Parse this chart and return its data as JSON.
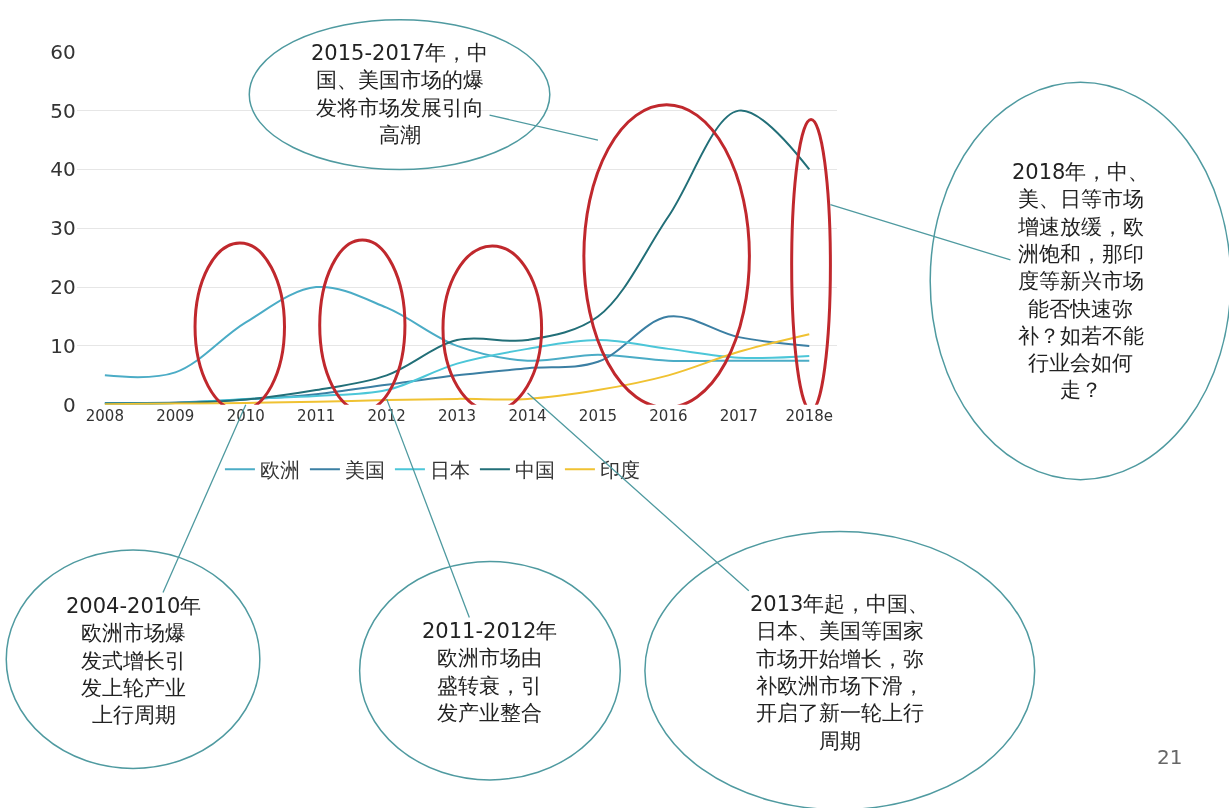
{
  "chart_data": {
    "type": "line",
    "categories": [
      "2008",
      "2009",
      "2010",
      "2011",
      "2012",
      "2013",
      "2014",
      "2015",
      "2016",
      "2017",
      "2018e"
    ],
    "series": [
      {
        "name": "欧洲",
        "color": "#4bacc6",
        "values": [
          5,
          5.5,
          14,
          20,
          16.5,
          10,
          7.5,
          8.5,
          7.5,
          7.5,
          7.5
        ]
      },
      {
        "name": "美国",
        "color": "#3b7fa3",
        "values": [
          0.3,
          0.4,
          0.9,
          1.8,
          3.4,
          5,
          6.2,
          7.3,
          15,
          11.5,
          10
        ]
      },
      {
        "name": "日本",
        "color": "#4cc6d8",
        "values": [
          0.2,
          0.3,
          1,
          1.5,
          2.5,
          7,
          9.5,
          11,
          9.5,
          8,
          8.3
        ]
      },
      {
        "name": "中国",
        "color": "#226f78",
        "values": [
          0.2,
          0.3,
          0.9,
          2.5,
          5,
          11,
          11,
          15,
          32,
          50,
          40
        ]
      },
      {
        "name": "印度",
        "color": "#f0c232",
        "values": [
          0.1,
          0.2,
          0.3,
          0.5,
          0.8,
          1,
          1,
          2.5,
          5,
          9,
          12
        ]
      }
    ],
    "ylim": [
      0,
      60
    ],
    "yticks": [
      0,
      10,
      20,
      30,
      40,
      50,
      60
    ],
    "grid": "y",
    "legend": "bottom",
    "marker": "none",
    "annotations": [
      "2015-2017年，中国、美国市场的爆发将市场发展引向高潮",
      "2018年，中、美、日等市场增速放缓，欧洲饱和，那印度等新兴市场能否快速弥补？如若不能行业会如何走？",
      {
        "text": "2004-2010年欧洲市场爆发式增长引发上轮产业上行周期",
        "x": "2010",
        "y": 0
      },
      {
        "text": "2011-2012年欧洲市场由盛转衰，引发产业整合",
        "x": "2012",
        "y": 1
      },
      {
        "text": "2013年起，中国、日本、美国等国家市场开始增长，弥补欧洲市场下滑，开启了新一轮上行周期",
        "x": "2014",
        "y": 2
      },
      "21"
    ]
  }
}
